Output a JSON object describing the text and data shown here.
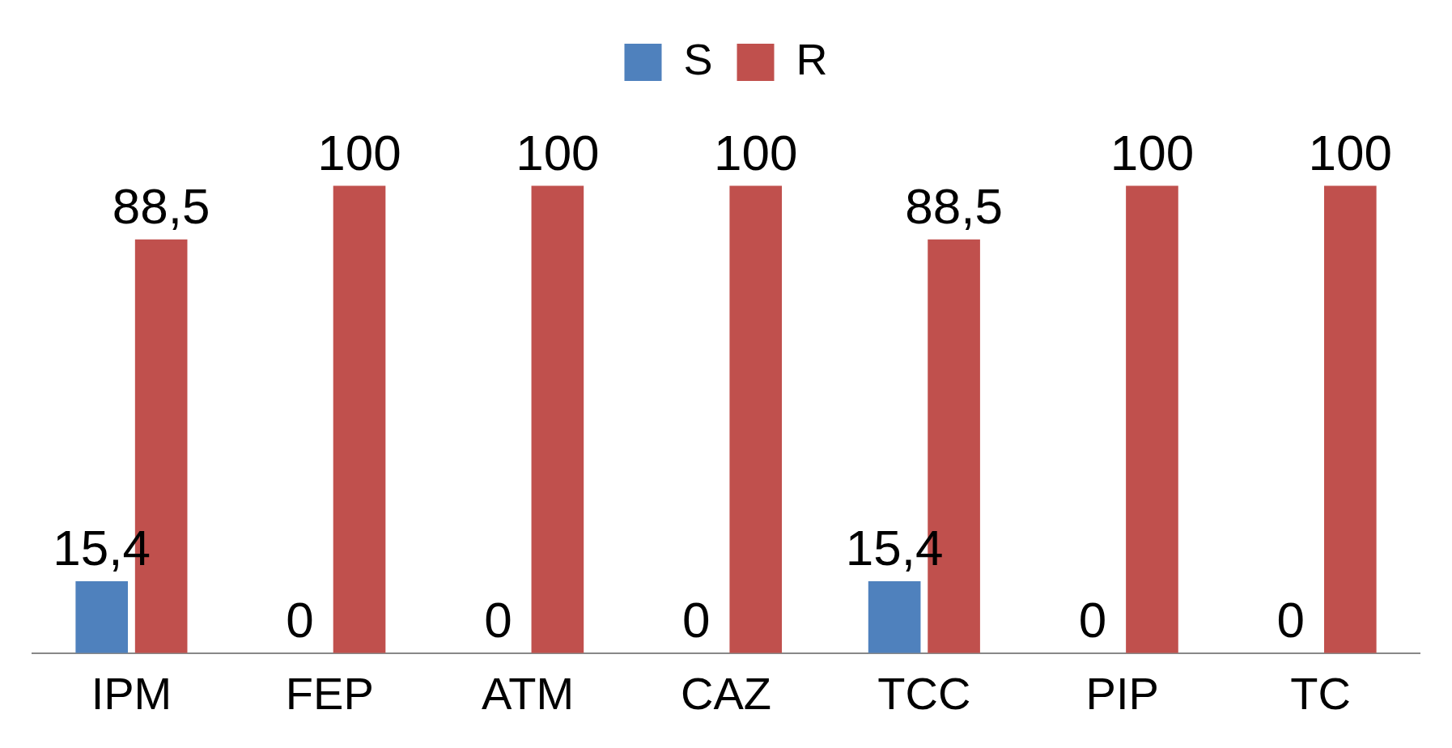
{
  "chart_data": {
    "type": "bar",
    "categories": [
      "IPM",
      "FEP",
      "ATM",
      "CAZ",
      "TCC",
      "PIP",
      "TC"
    ],
    "series": [
      {
        "name": "S",
        "color": "#4f81bd",
        "values": [
          15.4,
          0,
          0,
          0,
          15.4,
          0,
          0
        ],
        "value_labels": [
          "15,4",
          "0",
          "0",
          "0",
          "15,4",
          "0",
          "0"
        ]
      },
      {
        "name": "R",
        "color": "#c0504d",
        "values": [
          88.5,
          100,
          100,
          100,
          88.5,
          100,
          100
        ],
        "value_labels": [
          "88,5",
          "100",
          "100",
          "100",
          "88,5",
          "100",
          "100"
        ]
      }
    ],
    "legend": "top",
    "grid": false
  }
}
